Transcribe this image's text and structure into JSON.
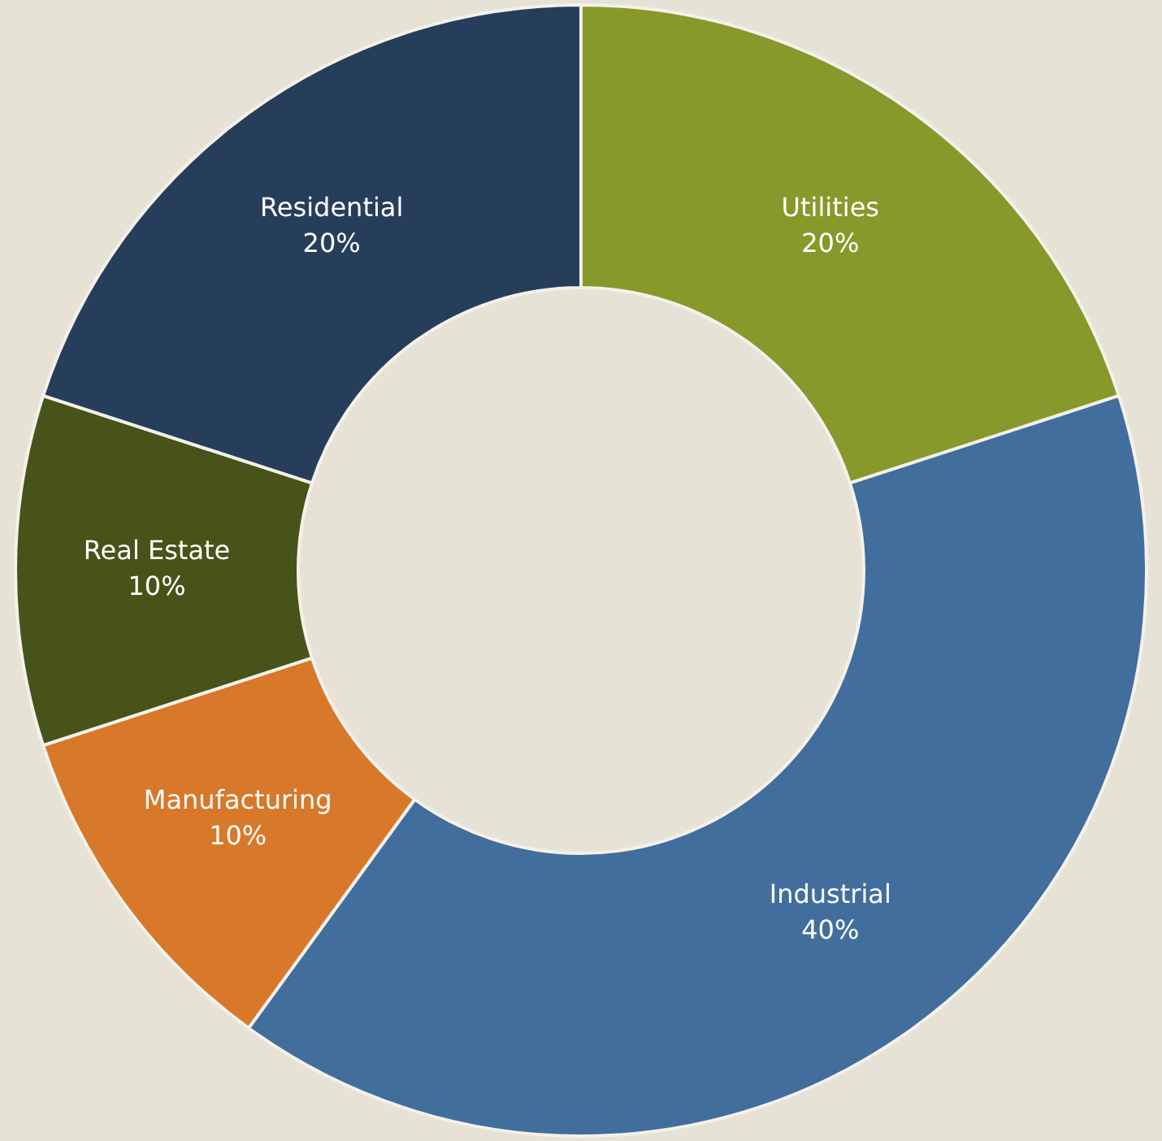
{
  "chart_data": {
    "type": "donut",
    "categories": [
      "Utilities",
      "Industrial",
      "Manufacturing",
      "Real Estate",
      "Residential"
    ],
    "values": [
      20,
      40,
      10,
      10,
      20
    ],
    "value_labels": [
      "20%",
      "40%",
      "10%",
      "10%",
      "20%"
    ],
    "colors": [
      "#86992a",
      "#416e9c",
      "#d8782a",
      "#475318",
      "#263e5a"
    ],
    "legend": false
  }
}
